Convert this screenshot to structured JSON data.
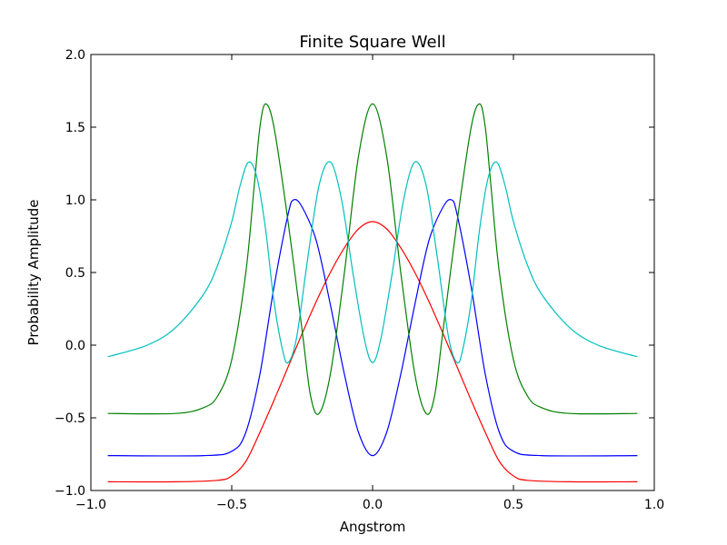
{
  "chart_data": {
    "type": "line",
    "title": "Finite Square Well",
    "xlabel": "Angstrom",
    "ylabel": "Probability Amplitude",
    "xlim": [
      -1.0,
      1.0
    ],
    "ylim": [
      -1.0,
      2.0
    ],
    "xticks": [
      -1.0,
      -0.5,
      0.0,
      0.5,
      1.0
    ],
    "xtick_labels": [
      "−1.0",
      "−0.5",
      "0.0",
      "0.5",
      "1.0"
    ],
    "yticks": [
      -1.0,
      -0.5,
      0.0,
      0.5,
      1.0,
      1.5,
      2.0
    ],
    "ytick_labels": [
      "−1.0",
      "−0.5",
      "0.0",
      "0.5",
      "1.0",
      "1.5",
      "2.0"
    ],
    "grid": false,
    "series": [
      {
        "color": "#ff0000",
        "points": [
          [
            -0.94,
            -0.94
          ],
          [
            -0.7,
            -0.94
          ],
          [
            -0.55,
            -0.93
          ],
          [
            -0.5,
            -0.9
          ],
          [
            -0.45,
            -0.8
          ],
          [
            -0.4,
            -0.6
          ],
          [
            -0.35,
            -0.38
          ],
          [
            -0.3,
            -0.15
          ],
          [
            -0.25,
            0.08
          ],
          [
            -0.2,
            0.3
          ],
          [
            -0.15,
            0.5
          ],
          [
            -0.1,
            0.67
          ],
          [
            -0.05,
            0.8
          ],
          [
            0.0,
            0.85
          ],
          [
            0.05,
            0.8
          ],
          [
            0.1,
            0.67
          ],
          [
            0.15,
            0.5
          ],
          [
            0.2,
            0.3
          ],
          [
            0.25,
            0.08
          ],
          [
            0.3,
            -0.15
          ],
          [
            0.35,
            -0.38
          ],
          [
            0.4,
            -0.6
          ],
          [
            0.45,
            -0.8
          ],
          [
            0.5,
            -0.9
          ],
          [
            0.55,
            -0.93
          ],
          [
            0.7,
            -0.94
          ],
          [
            0.94,
            -0.94
          ]
        ]
      },
      {
        "color": "#0000ff",
        "points": [
          [
            -0.94,
            -0.76
          ],
          [
            -0.6,
            -0.76
          ],
          [
            -0.5,
            -0.73
          ],
          [
            -0.45,
            -0.6
          ],
          [
            -0.4,
            -0.2
          ],
          [
            -0.35,
            0.4
          ],
          [
            -0.3,
            0.9
          ],
          [
            -0.28,
            1.0
          ],
          [
            -0.25,
            0.95
          ],
          [
            -0.2,
            0.72
          ],
          [
            -0.15,
            0.28
          ],
          [
            -0.1,
            -0.2
          ],
          [
            -0.05,
            -0.6
          ],
          [
            0.0,
            -0.76
          ],
          [
            0.05,
            -0.6
          ],
          [
            0.1,
            -0.2
          ],
          [
            0.15,
            0.28
          ],
          [
            0.2,
            0.72
          ],
          [
            0.25,
            0.95
          ],
          [
            0.28,
            1.0
          ],
          [
            0.3,
            0.9
          ],
          [
            0.35,
            0.4
          ],
          [
            0.4,
            -0.2
          ],
          [
            0.45,
            -0.6
          ],
          [
            0.5,
            -0.73
          ],
          [
            0.6,
            -0.76
          ],
          [
            0.94,
            -0.76
          ]
        ]
      },
      {
        "color": "#008000",
        "points": [
          [
            -0.94,
            -0.47
          ],
          [
            -0.7,
            -0.47
          ],
          [
            -0.6,
            -0.43
          ],
          [
            -0.55,
            -0.35
          ],
          [
            -0.5,
            -0.1
          ],
          [
            -0.45,
            0.5
          ],
          [
            -0.42,
            1.1
          ],
          [
            -0.4,
            1.5
          ],
          [
            -0.38,
            1.66
          ],
          [
            -0.35,
            1.5
          ],
          [
            -0.3,
            0.85
          ],
          [
            -0.25,
            0.1
          ],
          [
            -0.22,
            -0.35
          ],
          [
            -0.19,
            -0.47
          ],
          [
            -0.15,
            -0.2
          ],
          [
            -0.1,
            0.5
          ],
          [
            -0.05,
            1.3
          ],
          [
            0.0,
            1.66
          ],
          [
            0.05,
            1.3
          ],
          [
            0.1,
            0.5
          ],
          [
            0.15,
            -0.2
          ],
          [
            0.19,
            -0.47
          ],
          [
            0.22,
            -0.35
          ],
          [
            0.25,
            0.1
          ],
          [
            0.3,
            0.85
          ],
          [
            0.35,
            1.5
          ],
          [
            0.38,
            1.66
          ],
          [
            0.4,
            1.5
          ],
          [
            0.42,
            1.1
          ],
          [
            0.45,
            0.5
          ],
          [
            0.5,
            -0.1
          ],
          [
            0.55,
            -0.35
          ],
          [
            0.6,
            -0.43
          ],
          [
            0.7,
            -0.47
          ],
          [
            0.94,
            -0.47
          ]
        ]
      },
      {
        "color": "#00bfbf",
        "points": [
          [
            -0.94,
            -0.08
          ],
          [
            -0.8,
            0.0
          ],
          [
            -0.7,
            0.12
          ],
          [
            -0.6,
            0.35
          ],
          [
            -0.55,
            0.55
          ],
          [
            -0.5,
            0.85
          ],
          [
            -0.47,
            1.1
          ],
          [
            -0.44,
            1.26
          ],
          [
            -0.41,
            1.15
          ],
          [
            -0.38,
            0.8
          ],
          [
            -0.35,
            0.3
          ],
          [
            -0.32,
            -0.03
          ],
          [
            -0.3,
            -0.12
          ],
          [
            -0.27,
            0.05
          ],
          [
            -0.23,
            0.6
          ],
          [
            -0.19,
            1.1
          ],
          [
            -0.15,
            1.26
          ],
          [
            -0.11,
            1.0
          ],
          [
            -0.07,
            0.5
          ],
          [
            -0.03,
            0.05
          ],
          [
            0.0,
            -0.12
          ],
          [
            0.03,
            0.05
          ],
          [
            0.07,
            0.5
          ],
          [
            0.11,
            1.0
          ],
          [
            0.15,
            1.26
          ],
          [
            0.19,
            1.1
          ],
          [
            0.23,
            0.6
          ],
          [
            0.27,
            0.05
          ],
          [
            0.3,
            -0.12
          ],
          [
            0.32,
            -0.03
          ],
          [
            0.35,
            0.3
          ],
          [
            0.38,
            0.8
          ],
          [
            0.41,
            1.15
          ],
          [
            0.44,
            1.26
          ],
          [
            0.47,
            1.1
          ],
          [
            0.5,
            0.85
          ],
          [
            0.55,
            0.55
          ],
          [
            0.6,
            0.35
          ],
          [
            0.7,
            0.12
          ],
          [
            0.8,
            0.0
          ],
          [
            0.94,
            -0.08
          ]
        ]
      }
    ]
  }
}
